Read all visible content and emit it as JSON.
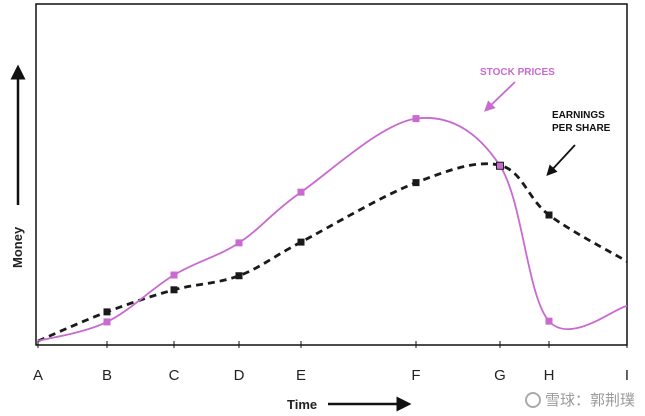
{
  "chart_data": {
    "type": "line",
    "title": "",
    "xlabel": "Time",
    "ylabel": "Money",
    "categories": [
      "A",
      "B",
      "C",
      "D",
      "E",
      "F",
      "G",
      "H",
      "I"
    ],
    "ylim": [
      0,
      100
    ],
    "grid": false,
    "series": [
      {
        "name": "STOCK PRICES",
        "color": "#c86ad0",
        "style": "solid",
        "marker": "square",
        "marked_points": [
          1,
          2,
          3,
          4,
          5,
          6,
          7
        ],
        "values": [
          0.0,
          7.6,
          26.3,
          39.1,
          59.3,
          88.6,
          69.8,
          7.9,
          14.0
        ]
      },
      {
        "name": "EARNINGS PER SHARE",
        "color": "#1a1a1a",
        "style": "dashed",
        "marker": "square",
        "marked_points": [
          1,
          2,
          3,
          4,
          5,
          6,
          7
        ],
        "values": [
          0.0,
          11.6,
          20.4,
          26.0,
          39.4,
          63.1,
          70.0,
          50.2,
          31.7
        ]
      }
    ],
    "annotations": [
      {
        "text_lines": [
          "STOCK PRICES"
        ],
        "series": 0
      },
      {
        "text_lines": [
          "EARNINGS",
          "PER SHARE"
        ],
        "series": 1
      }
    ]
  },
  "watermark": {
    "text": "雪球：郭荆璞"
  }
}
